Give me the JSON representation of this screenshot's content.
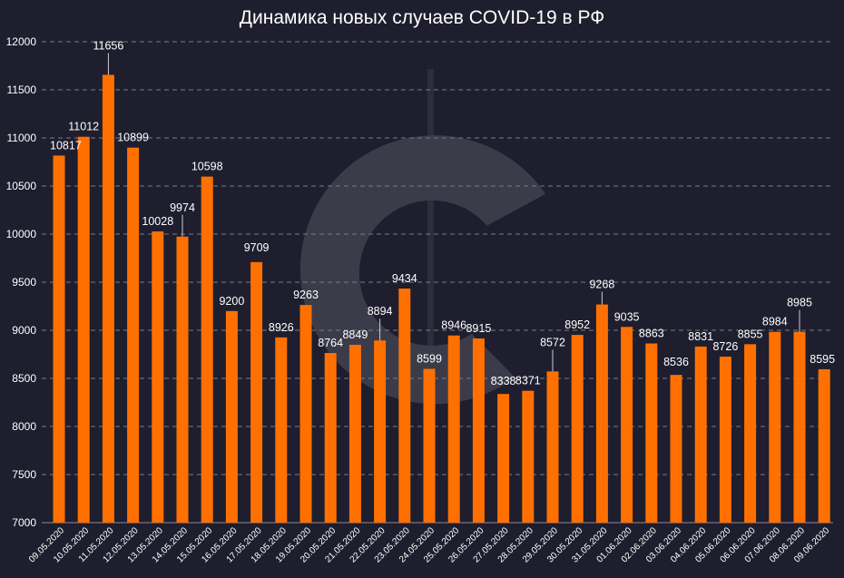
{
  "chart_data": {
    "type": "bar",
    "title": "Динамика новых случаев COVID-19 в РФ",
    "xlabel": "",
    "ylabel": "",
    "ylim": [
      7000,
      12000
    ],
    "yticks": [
      7000,
      7500,
      8000,
      8500,
      9000,
      9500,
      10000,
      10500,
      11000,
      11500,
      12000
    ],
    "grid": true,
    "bar_color": "#ff7000",
    "background_color": "#1e1e2e",
    "categories": [
      "09.05.2020",
      "10.05.2020",
      "11.05.2020",
      "12.05.2020",
      "13.05.2020",
      "14.05.2020",
      "15.05.2020",
      "16.05.2020",
      "17.05.2020",
      "18.05.2020",
      "19.05.2020",
      "20.05.2020",
      "21.05.2020",
      "22.05.2020",
      "23.05.2020",
      "24.05.2020",
      "25.05.2020",
      "26.05.2020",
      "27.05.2020",
      "28.05.2020",
      "29.05.2020",
      "30.05.2020",
      "31.05.2020",
      "01.06.2020",
      "02.06.2020",
      "03.06.2020",
      "04.06.2020",
      "05.06.2020",
      "06.06.2020",
      "07.06.2020",
      "08.06.2020",
      "09.06.2020"
    ],
    "values": [
      10817,
      11012,
      11656,
      10899,
      10028,
      9974,
      10598,
      9200,
      9709,
      8926,
      9263,
      8764,
      8849,
      8894,
      9434,
      8599,
      8946,
      8915,
      8338,
      8371,
      8572,
      8952,
      9268,
      9035,
      8863,
      8536,
      8831,
      8726,
      8855,
      8984,
      8985,
      8595
    ]
  }
}
